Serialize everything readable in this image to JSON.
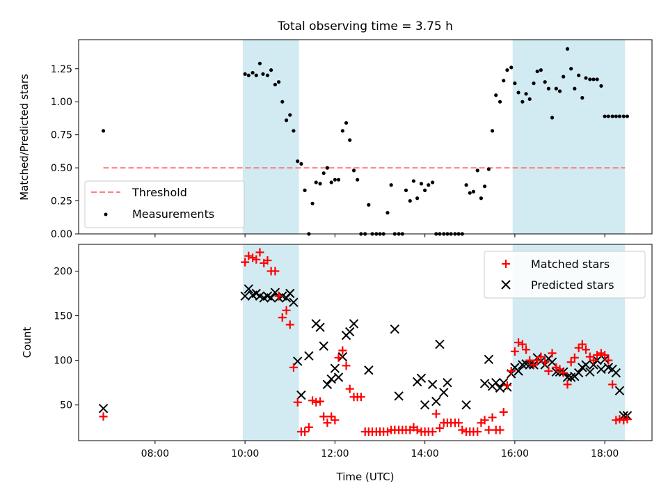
{
  "title": "Total observing time = 3.75 h",
  "colors": {
    "shade": "#add8e6",
    "threshold": "#ff7f7f",
    "measurements": "#000000",
    "matched": "#ff0000",
    "predicted": "#000000"
  },
  "chart_data": [
    {
      "type": "scatter",
      "ylabel": "Matched/Predicted stars",
      "ylim": [
        0,
        1.47
      ],
      "yticks": [
        0,
        0.25,
        0.5,
        0.75,
        1.0,
        1.25
      ],
      "ytick_labels": [
        "0.00",
        "0.25",
        "0.50",
        "0.75",
        "1.00",
        "1.25"
      ],
      "xlim": [
        6.3,
        19.05
      ],
      "legend": {
        "position": "lower-left",
        "entries": [
          "Threshold",
          "Measurements"
        ]
      },
      "shaded_ranges": [
        [
          9.95,
          11.2
        ],
        [
          15.95,
          18.45
        ]
      ],
      "threshold": {
        "name": "Threshold",
        "y": 0.5,
        "x_range": [
          6.85,
          18.45
        ]
      },
      "series": [
        {
          "name": "Measurements",
          "marker": "dot",
          "x": [
            6.85,
            10.0,
            10.08,
            10.17,
            10.25,
            10.33,
            10.4,
            10.5,
            10.58,
            10.67,
            10.75,
            10.83,
            10.92,
            11.0,
            11.08,
            11.17,
            11.25,
            11.33,
            11.42,
            11.5,
            11.58,
            11.67,
            11.75,
            11.83,
            11.92,
            12.0,
            12.08,
            12.17,
            12.25,
            12.33,
            12.42,
            12.5,
            12.58,
            12.67,
            12.75,
            12.83,
            12.92,
            13.0,
            13.08,
            13.17,
            13.25,
            13.33,
            13.42,
            13.5,
            13.58,
            13.67,
            13.75,
            13.83,
            13.92,
            14.0,
            14.08,
            14.17,
            14.25,
            14.33,
            14.42,
            14.5,
            14.58,
            14.67,
            14.75,
            14.83,
            14.92,
            15.0,
            15.08,
            15.17,
            15.25,
            15.33,
            15.42,
            15.5,
            15.58,
            15.67,
            15.75,
            15.83,
            15.92,
            16.0,
            16.08,
            16.17,
            16.25,
            16.33,
            16.42,
            16.5,
            16.58,
            16.67,
            16.75,
            16.83,
            16.92,
            17.0,
            17.08,
            17.17,
            17.25,
            17.33,
            17.42,
            17.5,
            17.58,
            17.67,
            17.75,
            17.83,
            17.92,
            18.0,
            18.08,
            18.17,
            18.25,
            18.33,
            18.42,
            18.5
          ],
          "y": [
            0.78,
            1.21,
            1.2,
            1.22,
            1.2,
            1.29,
            1.21,
            1.2,
            1.24,
            1.13,
            1.15,
            1.0,
            0.86,
            0.9,
            0.78,
            0.55,
            0.53,
            0.33,
            0.0,
            0.23,
            0.39,
            0.38,
            0.46,
            0.5,
            0.39,
            0.41,
            0.41,
            0.78,
            0.84,
            0.71,
            0.48,
            0.41,
            0.0,
            0.0,
            0.22,
            0.0,
            0.0,
            0.0,
            0.0,
            0.16,
            0.37,
            0.0,
            0.0,
            0.0,
            0.33,
            0.25,
            0.4,
            0.27,
            0.38,
            0.33,
            0.37,
            0.39,
            0.0,
            0.0,
            0.0,
            0.0,
            0.0,
            0.0,
            0.0,
            0.0,
            0.37,
            0.31,
            0.32,
            0.48,
            0.27,
            0.36,
            0.49,
            0.78,
            1.05,
            1.0,
            1.16,
            1.24,
            1.26,
            1.14,
            1.07,
            1.0,
            1.06,
            1.02,
            1.14,
            1.23,
            1.24,
            1.15,
            1.1,
            0.88,
            1.1,
            1.08,
            1.19,
            1.4,
            1.25,
            1.1,
            1.2,
            1.03,
            1.18,
            1.17,
            1.17,
            1.17,
            1.12,
            0.89,
            0.89,
            0.89,
            0.89,
            0.89,
            0.89,
            0.89
          ]
        }
      ]
    },
    {
      "type": "scatter",
      "xlabel": "Time (UTC)",
      "ylabel": "Count",
      "ylim": [
        10,
        230
      ],
      "yticks": [
        50,
        100,
        150,
        200
      ],
      "ytick_labels": [
        "50",
        "100",
        "150",
        "200"
      ],
      "xlim": [
        6.3,
        19.05
      ],
      "xticks": [
        8,
        10,
        12,
        14,
        16,
        18
      ],
      "xtick_labels": [
        "08:00",
        "10:00",
        "12:00",
        "14:00",
        "16:00",
        "18:00"
      ],
      "legend": {
        "position": "top-right",
        "entries": [
          "Matched stars",
          "Predicted stars"
        ]
      },
      "shaded_ranges": [
        [
          9.95,
          11.2
        ],
        [
          15.95,
          18.45
        ]
      ],
      "series": [
        {
          "name": "Matched stars",
          "marker": "plus",
          "x": [
            6.85,
            10.0,
            10.08,
            10.17,
            10.25,
            10.33,
            10.42,
            10.5,
            10.58,
            10.67,
            10.75,
            10.83,
            10.92,
            11.0,
            11.08,
            11.17,
            11.25,
            11.33,
            11.42,
            11.5,
            11.58,
            11.67,
            11.75,
            11.83,
            11.92,
            12.0,
            12.08,
            12.17,
            12.25,
            12.33,
            12.42,
            12.5,
            12.58,
            12.67,
            12.75,
            12.83,
            12.92,
            13.0,
            13.08,
            13.17,
            13.25,
            13.33,
            13.42,
            13.5,
            13.58,
            13.67,
            13.75,
            13.83,
            13.92,
            14.0,
            14.08,
            14.17,
            14.25,
            14.33,
            14.42,
            14.5,
            14.58,
            14.67,
            14.75,
            14.83,
            14.92,
            15.0,
            15.08,
            15.17,
            15.25,
            15.33,
            15.42,
            15.5,
            15.58,
            15.67,
            15.75,
            15.83,
            15.92,
            16.0,
            16.08,
            16.17,
            16.25,
            16.33,
            16.42,
            16.5,
            16.58,
            16.67,
            16.75,
            16.83,
            16.92,
            17.0,
            17.08,
            17.17,
            17.25,
            17.33,
            17.42,
            17.5,
            17.58,
            17.67,
            17.75,
            17.83,
            17.92,
            18.0,
            18.08,
            18.17,
            18.25,
            18.33,
            18.42,
            18.5
          ],
          "y": [
            37,
            210,
            217,
            215,
            213,
            221,
            209,
            212,
            200,
            200,
            172,
            148,
            156,
            140,
            92,
            53,
            20,
            20,
            25,
            55,
            53,
            54,
            37,
            30,
            37,
            33,
            103,
            111,
            94,
            68,
            59,
            59,
            59,
            20,
            20,
            20,
            20,
            20,
            20,
            20,
            22,
            22,
            22,
            22,
            22,
            22,
            25,
            22,
            20,
            20,
            20,
            20,
            40,
            24,
            30,
            30,
            30,
            30,
            30,
            22,
            20,
            20,
            20,
            20,
            30,
            33,
            22,
            36,
            22,
            22,
            42,
            72,
            88,
            110,
            120,
            118,
            112,
            100,
            95,
            100,
            104,
            98,
            88,
            108,
            92,
            90,
            86,
            73,
            98,
            103,
            114,
            118,
            112,
            104,
            100,
            106,
            108,
            106,
            100,
            73,
            33,
            34,
            33,
            34
          ]
        },
        {
          "name": "Predicted stars",
          "marker": "x",
          "x": [
            6.85,
            10.0,
            10.08,
            10.17,
            10.25,
            10.33,
            10.42,
            10.5,
            10.58,
            10.67,
            10.75,
            10.83,
            10.92,
            11.0,
            11.08,
            11.17,
            11.25,
            11.42,
            11.58,
            11.67,
            11.75,
            11.83,
            11.92,
            12.0,
            12.08,
            12.17,
            12.25,
            12.33,
            12.42,
            12.75,
            13.33,
            13.42,
            13.83,
            13.92,
            14.0,
            14.17,
            14.25,
            14.33,
            14.42,
            14.5,
            14.92,
            15.33,
            15.42,
            15.5,
            15.58,
            15.67,
            15.75,
            15.83,
            15.92,
            16.0,
            16.08,
            16.17,
            16.25,
            16.33,
            16.42,
            16.5,
            16.58,
            16.67,
            16.75,
            16.83,
            16.92,
            17.0,
            17.08,
            17.17,
            17.25,
            17.33,
            17.42,
            17.5,
            17.58,
            17.67,
            17.75,
            17.83,
            17.92,
            18.0,
            18.08,
            18.17,
            18.25,
            18.33,
            18.42,
            18.5
          ],
          "y": [
            46,
            172,
            180,
            173,
            175,
            172,
            170,
            172,
            170,
            176,
            170,
            172,
            170,
            175,
            165,
            99,
            61,
            105,
            141,
            137,
            116,
            73,
            79,
            91,
            81,
            104,
            128,
            132,
            141,
            89,
            135,
            60,
            76,
            80,
            50,
            73,
            54,
            118,
            64,
            75,
            50,
            74,
            101,
            71,
            75,
            69,
            75,
            70,
            85,
            92,
            88,
            95,
            96,
            95,
            95,
            103,
            99,
            95,
            102,
            98,
            87,
            87,
            87,
            81,
            81,
            82,
            86,
            92,
            95,
            87,
            95,
            100,
            90,
            101,
            92,
            90,
            86,
            66,
            38,
            38
          ]
        }
      ]
    }
  ]
}
